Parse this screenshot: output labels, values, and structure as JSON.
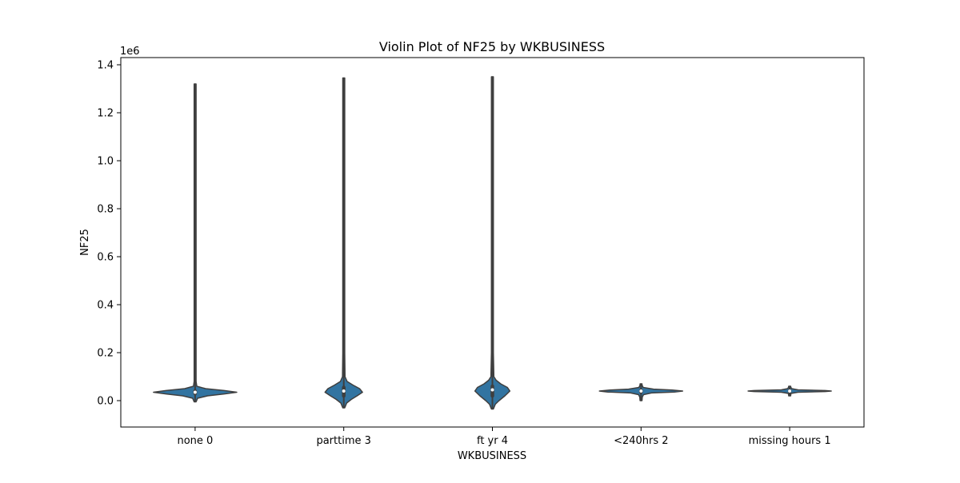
{
  "chart_data": {
    "type": "violin",
    "title": "Violin Plot of NF25 by WKBUSINESS",
    "xlabel": "WKBUSINESS",
    "ylabel": "NF25",
    "y_scale_label": "1e6",
    "ylim": [
      -0.11,
      1.43
    ],
    "y_ticks": [
      0.0,
      0.2,
      0.4,
      0.6,
      0.8,
      1.0,
      1.2,
      1.4
    ],
    "y_tick_labels": [
      "0.0",
      "0.2",
      "0.4",
      "0.6",
      "0.8",
      "1.0",
      "1.2",
      "1.4"
    ],
    "categories": [
      "none 0",
      "parttime 3",
      "ft yr 4",
      "<240hrs 2",
      "missing hours 1"
    ],
    "series": [
      {
        "category": "none 0",
        "min": -0.005,
        "max": 1.32,
        "q1": 0.03,
        "median": 0.035,
        "q3": 0.04,
        "density": [
          [
            -0.005,
            0.01
          ],
          [
            0.01,
            0.06
          ],
          [
            0.02,
            0.3
          ],
          [
            0.028,
            0.7
          ],
          [
            0.035,
            1.0
          ],
          [
            0.042,
            0.7
          ],
          [
            0.05,
            0.25
          ],
          [
            0.06,
            0.04
          ],
          [
            0.08,
            0.02
          ],
          [
            0.15,
            0.012
          ],
          [
            0.4,
            0.01
          ],
          [
            1.32,
            0.01
          ]
        ]
      },
      {
        "category": "parttime 3",
        "min": -0.03,
        "max": 1.345,
        "q1": 0.02,
        "median": 0.04,
        "q3": 0.055,
        "density": [
          [
            -0.03,
            0.02
          ],
          [
            -0.01,
            0.07
          ],
          [
            0.005,
            0.18
          ],
          [
            0.02,
            0.32
          ],
          [
            0.035,
            0.45
          ],
          [
            0.05,
            0.38
          ],
          [
            0.065,
            0.22
          ],
          [
            0.08,
            0.08
          ],
          [
            0.1,
            0.03
          ],
          [
            0.2,
            0.012
          ],
          [
            0.5,
            0.01
          ],
          [
            1.345,
            0.01
          ]
        ]
      },
      {
        "category": "ft yr 4",
        "min": -0.035,
        "max": 1.35,
        "q1": 0.02,
        "median": 0.045,
        "q3": 0.06,
        "density": [
          [
            -0.035,
            0.02
          ],
          [
            -0.015,
            0.07
          ],
          [
            0.0,
            0.16
          ],
          [
            0.02,
            0.3
          ],
          [
            0.04,
            0.42
          ],
          [
            0.055,
            0.36
          ],
          [
            0.07,
            0.2
          ],
          [
            0.085,
            0.09
          ],
          [
            0.1,
            0.035
          ],
          [
            0.2,
            0.013
          ],
          [
            0.5,
            0.01
          ],
          [
            1.35,
            0.01
          ]
        ]
      },
      {
        "category": "<240hrs 2",
        "min": 0.0,
        "max": 0.07,
        "q1": 0.036,
        "median": 0.04,
        "q3": 0.043,
        "density": [
          [
            0.0,
            0.015
          ],
          [
            0.015,
            0.03
          ],
          [
            0.025,
            0.06
          ],
          [
            0.032,
            0.25
          ],
          [
            0.036,
            0.8
          ],
          [
            0.04,
            1.0
          ],
          [
            0.044,
            0.75
          ],
          [
            0.048,
            0.3
          ],
          [
            0.055,
            0.05
          ],
          [
            0.065,
            0.02
          ],
          [
            0.07,
            0.01
          ]
        ]
      },
      {
        "category": "missing hours 1",
        "min": 0.02,
        "max": 0.06,
        "q1": 0.038,
        "median": 0.04,
        "q3": 0.042,
        "density": [
          [
            0.02,
            0.01
          ],
          [
            0.03,
            0.03
          ],
          [
            0.035,
            0.2
          ],
          [
            0.038,
            0.85
          ],
          [
            0.04,
            1.0
          ],
          [
            0.042,
            0.85
          ],
          [
            0.045,
            0.2
          ],
          [
            0.05,
            0.05
          ],
          [
            0.055,
            0.03
          ],
          [
            0.06,
            0.015
          ]
        ]
      }
    ],
    "fill_color": "#3274a1",
    "line_color": "#3f3f3f",
    "grid": false
  }
}
